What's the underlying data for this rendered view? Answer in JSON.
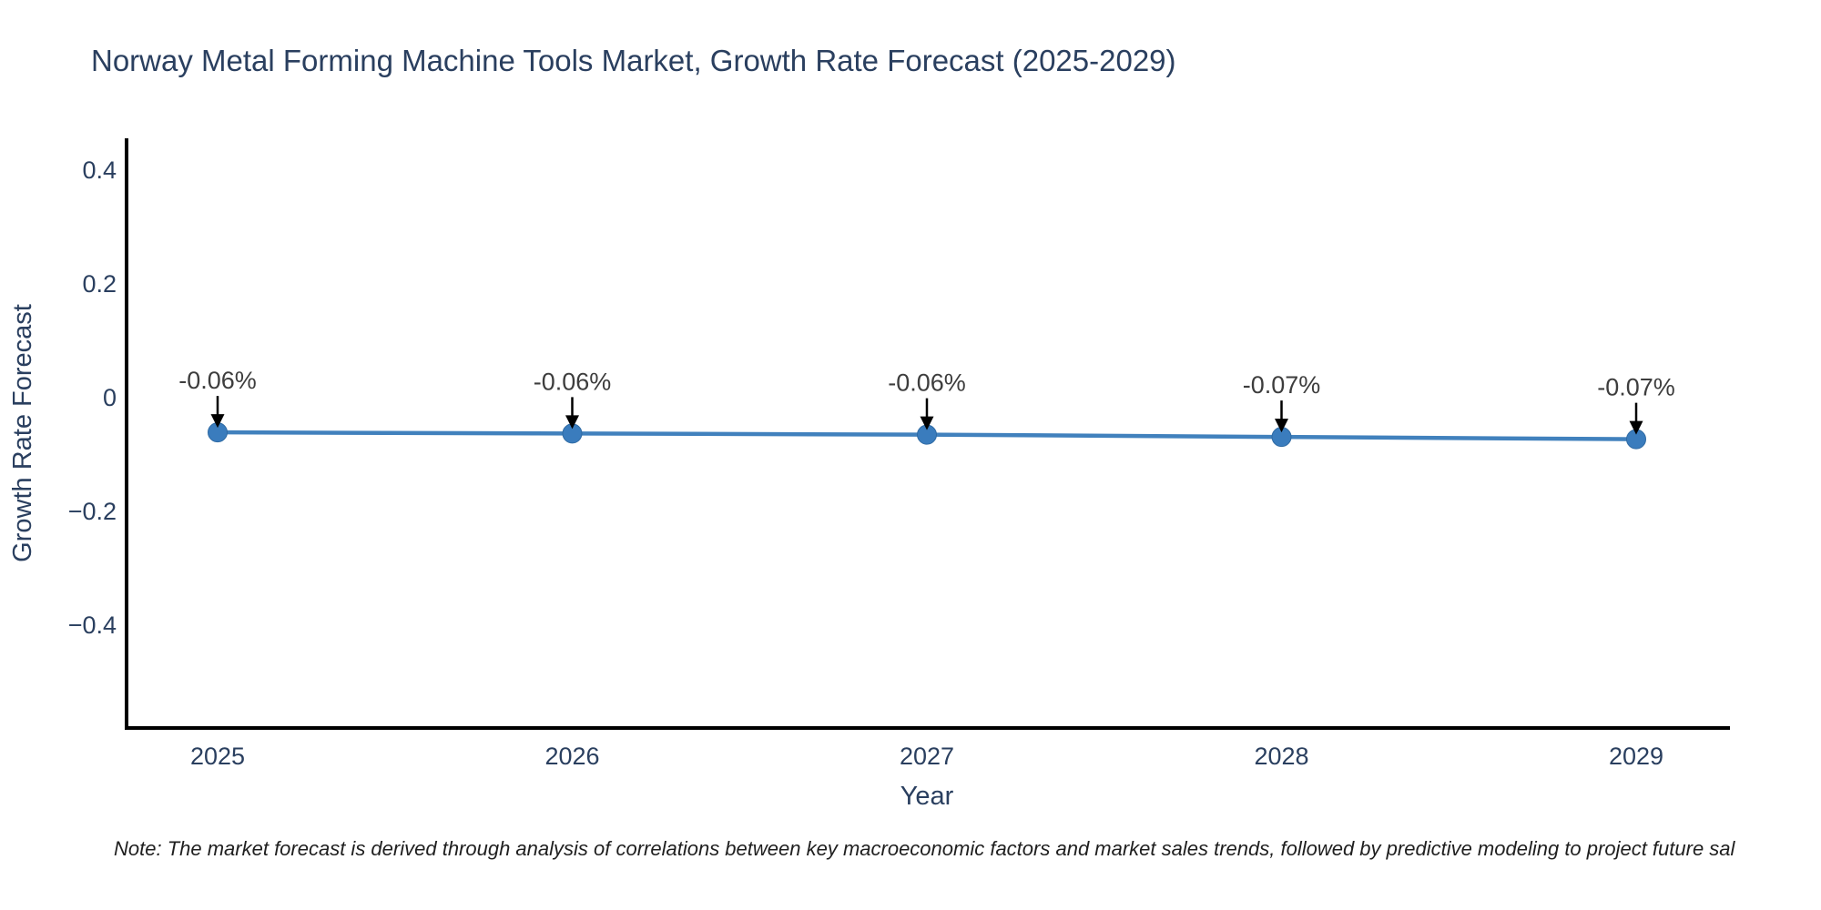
{
  "title": "Norway Metal Forming Machine Tools Market, Growth Rate Forecast (2025-2029)",
  "note": "Note: The market forecast is derived through analysis of correlations between key macroeconomic factors and market sales trends, followed by predictive modeling to project future sal",
  "chart_data": {
    "type": "line",
    "title": "Norway Metal Forming Machine Tools Market, Growth Rate Forecast (2025-2029)",
    "xlabel": "Year",
    "ylabel": "Growth Rate Forecast",
    "categories": [
      "2025",
      "2026",
      "2027",
      "2028",
      "2029"
    ],
    "values": [
      -0.06,
      -0.06,
      -0.06,
      -0.07,
      -0.07
    ],
    "values_precise": [
      -0.061,
      -0.063,
      -0.065,
      -0.069,
      -0.073
    ],
    "point_labels": [
      "-0.06%",
      "-0.06%",
      "-0.06%",
      "-0.07%",
      "-0.07%"
    ],
    "yticks": [
      0.4,
      0.2,
      0,
      -0.2,
      -0.4
    ],
    "ytick_labels": [
      "0.4",
      "0.2",
      "0",
      "−0.2",
      "−0.4"
    ],
    "ylim": [
      -0.58,
      0.46
    ],
    "grid": false,
    "legend": "none",
    "colors": {
      "line": "#4181bd",
      "marker": "#3a7cbd",
      "marker_edge": "#2f6aa3",
      "axis_line": "#000000",
      "axis_text": "#2a3f5f",
      "annotation_text": "#3d3d3d",
      "arrow": "#000000",
      "title_text": "#2a3f5f",
      "note_text": "#1f1f1f",
      "background": "#ffffff"
    }
  }
}
